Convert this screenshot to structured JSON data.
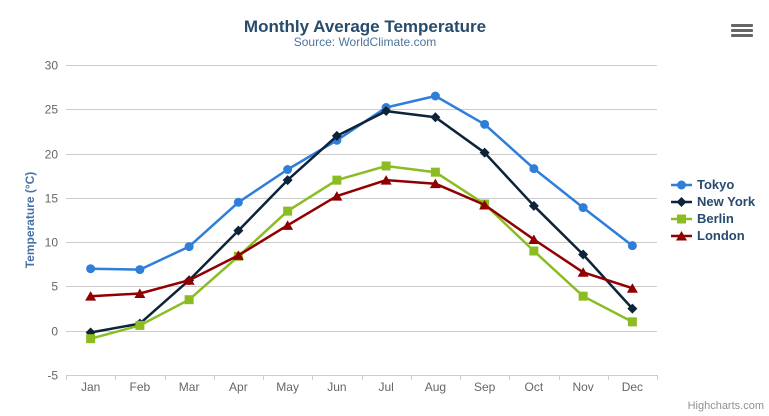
{
  "chart_data": {
    "type": "line",
    "title": "Monthly Average Temperature",
    "subtitle": "Source: WorldClimate.com",
    "categories": [
      "Jan",
      "Feb",
      "Mar",
      "Apr",
      "May",
      "Jun",
      "Jul",
      "Aug",
      "Sep",
      "Oct",
      "Nov",
      "Dec"
    ],
    "xlabel": "",
    "ylabel": "Temperature (°C)",
    "ylim": [
      -5,
      30
    ],
    "ytick_step": 5,
    "grid": true,
    "legend_position": "right",
    "series": [
      {
        "name": "Tokyo",
        "color": "#2f7ed8",
        "marker": "circle",
        "values": [
          7.0,
          6.9,
          9.5,
          14.5,
          18.2,
          21.5,
          25.2,
          26.5,
          23.3,
          18.3,
          13.9,
          9.6
        ]
      },
      {
        "name": "New York",
        "color": "#0d233a",
        "marker": "diamond",
        "values": [
          -0.2,
          0.8,
          5.7,
          11.3,
          17.0,
          22.0,
          24.8,
          24.1,
          20.1,
          14.1,
          8.6,
          2.5
        ]
      },
      {
        "name": "Berlin",
        "color": "#8bbc21",
        "marker": "square",
        "values": [
          -0.9,
          0.6,
          3.5,
          8.4,
          13.5,
          17.0,
          18.6,
          17.9,
          14.3,
          9.0,
          3.9,
          1.0
        ]
      },
      {
        "name": "London",
        "color": "#910000",
        "marker": "triangle",
        "values": [
          3.9,
          4.2,
          5.7,
          8.5,
          11.9,
          15.2,
          17.0,
          16.6,
          14.2,
          10.3,
          6.6,
          4.8
        ]
      }
    ]
  },
  "credits_label": "Highcharts.com",
  "colors": {
    "title": "#274b6d",
    "subtitle": "#4d759e",
    "axis_labels": "#666666",
    "axis_line": "#c0d0e0",
    "grid_line": "#cccccc",
    "y_axis_title": "#4572a7",
    "legend_text": "#274b6d",
    "credits": "#909090",
    "menu_icon": "#666666",
    "background": "#ffffff"
  }
}
